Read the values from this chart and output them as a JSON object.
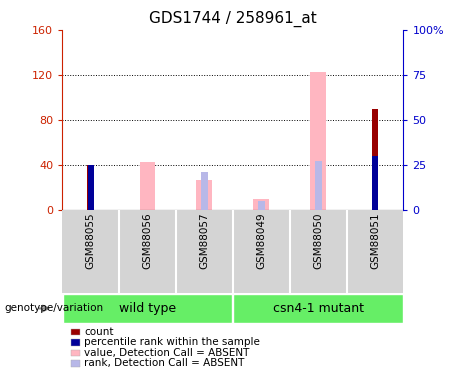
{
  "title": "GDS1744 / 258961_at",
  "samples": [
    "GSM88055",
    "GSM88056",
    "GSM88057",
    "GSM88049",
    "GSM88050",
    "GSM88051"
  ],
  "groups": [
    "wild type",
    "wild type",
    "wild type",
    "csn4-1 mutant",
    "csn4-1 mutant",
    "csn4-1 mutant"
  ],
  "count_values": [
    40,
    0,
    0,
    0,
    0,
    90
  ],
  "rank_values_pct": [
    25,
    0,
    0,
    0,
    0,
    30
  ],
  "absent_value": [
    0,
    43,
    27,
    10,
    123,
    0
  ],
  "absent_rank_pct": [
    0,
    0,
    21,
    5,
    27,
    0
  ],
  "ylim_left": [
    0,
    160
  ],
  "ylim_right": [
    0,
    100
  ],
  "yticks_left": [
    0,
    40,
    80,
    120,
    160
  ],
  "yticks_right": [
    0,
    25,
    50,
    75,
    100
  ],
  "yticklabels_right": [
    "0",
    "25",
    "50",
    "75",
    "100%"
  ],
  "left_axis_color": "#cc2200",
  "right_axis_color": "#0000cc",
  "count_color": "#990000",
  "rank_color": "#000099",
  "absent_value_color": "#ffb6c1",
  "absent_rank_color": "#b8b8e8",
  "group_bar_color": "#66ee66",
  "group_label_fontsize": 9,
  "title_fontsize": 11,
  "legend_items": [
    {
      "label": "count",
      "color": "#990000"
    },
    {
      "label": "percentile rank within the sample",
      "color": "#000099"
    },
    {
      "label": "value, Detection Call = ABSENT",
      "color": "#ffb6c1"
    },
    {
      "label": "rank, Detection Call = ABSENT",
      "color": "#b8b8e8"
    }
  ]
}
